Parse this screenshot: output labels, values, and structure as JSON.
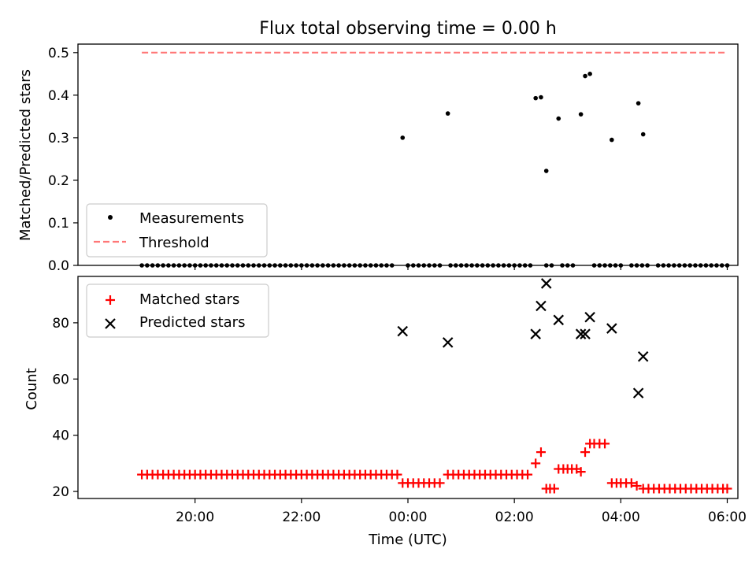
{
  "figure": {
    "title": "Flux total observing time = 0.00 h",
    "xlabel": "Time (UTC)",
    "xticks": [
      "20:00",
      "22:00",
      "00:00",
      "02:00",
      "04:00",
      "06:00"
    ]
  },
  "chart_data": [
    {
      "type": "scatter",
      "panel": "top",
      "xlabel": "",
      "ylabel": "Matched/Predicted stars",
      "x_unit": "hours since 19:00 UTC",
      "xlim": [
        -1.2,
        11.2
      ],
      "ylim": [
        0,
        0.52
      ],
      "yticks": [
        "0.0",
        "0.1",
        "0.2",
        "0.3",
        "0.4",
        "0.5"
      ],
      "ytick_values": [
        0,
        0.1,
        0.2,
        0.3,
        0.4,
        0.5
      ],
      "legend": {
        "placement": "lower-left",
        "entries": [
          "Measurements",
          "Threshold"
        ]
      },
      "threshold": {
        "name": "Threshold",
        "value": 0.5,
        "x_range": [
          0,
          11
        ],
        "color": "#ff7777"
      },
      "series": [
        {
          "name": "Measurements",
          "color": "#000000",
          "zero_points_x": [
            0.0,
            0.1,
            0.2,
            0.3,
            0.4,
            0.5,
            0.6,
            0.7,
            0.8,
            0.9,
            1.0,
            1.1,
            1.2,
            1.3,
            1.4,
            1.5,
            1.6,
            1.7,
            1.8,
            1.9,
            2.0,
            2.1,
            2.2,
            2.3,
            2.4,
            2.5,
            2.6,
            2.7,
            2.8,
            2.9,
            3.0,
            3.1,
            3.2,
            3.3,
            3.4,
            3.5,
            3.6,
            3.7,
            3.8,
            3.9,
            4.0,
            4.1,
            4.2,
            4.3,
            4.4,
            4.5,
            4.6,
            4.7,
            5.0,
            5.1,
            5.2,
            5.3,
            5.4,
            5.5,
            5.6,
            5.8,
            5.9,
            6.0,
            6.1,
            6.2,
            6.3,
            6.4,
            6.5,
            6.6,
            6.7,
            6.8,
            6.9,
            7.0,
            7.1,
            7.2,
            7.3,
            7.6,
            7.7,
            7.9,
            8.0,
            8.1,
            8.5,
            8.6,
            8.7,
            8.8,
            8.9,
            9.0,
            9.2,
            9.3,
            9.4,
            9.5,
            9.7,
            9.8,
            9.9,
            10.0,
            10.1,
            10.2,
            10.3,
            10.4,
            10.5,
            10.6,
            10.7,
            10.8,
            10.9,
            11.0
          ],
          "points": [
            [
              4.9,
              0.3
            ],
            [
              5.75,
              0.357
            ],
            [
              7.4,
              0.393
            ],
            [
              7.5,
              0.395
            ],
            [
              7.6,
              0.222
            ],
            [
              7.83,
              0.345
            ],
            [
              8.25,
              0.355
            ],
            [
              8.33,
              0.445
            ],
            [
              8.42,
              0.45
            ],
            [
              8.83,
              0.295
            ],
            [
              9.33,
              0.381
            ],
            [
              9.42,
              0.308
            ]
          ]
        }
      ]
    },
    {
      "type": "scatter",
      "panel": "bottom",
      "xlabel": "Time (UTC)",
      "ylabel": "Count",
      "x_unit": "hours since 19:00 UTC",
      "xlim": [
        -1.2,
        11.2
      ],
      "ylim": [
        17.5,
        96.5
      ],
      "yticks": [
        "20",
        "40",
        "60",
        "80"
      ],
      "ytick_values": [
        20,
        40,
        60,
        80
      ],
      "legend": {
        "placement": "upper-left",
        "entries": [
          "Matched stars",
          "Predicted stars"
        ]
      },
      "series": [
        {
          "name": "Matched stars",
          "marker": "plus",
          "color": "#ff0000",
          "points": [
            [
              0.0,
              26
            ],
            [
              0.1,
              26
            ],
            [
              0.2,
              26
            ],
            [
              0.3,
              26
            ],
            [
              0.4,
              26
            ],
            [
              0.5,
              26
            ],
            [
              0.6,
              26
            ],
            [
              0.7,
              26
            ],
            [
              0.8,
              26
            ],
            [
              0.9,
              26
            ],
            [
              1.0,
              26
            ],
            [
              1.1,
              26
            ],
            [
              1.2,
              26
            ],
            [
              1.3,
              26
            ],
            [
              1.4,
              26
            ],
            [
              1.5,
              26
            ],
            [
              1.6,
              26
            ],
            [
              1.7,
              26
            ],
            [
              1.8,
              26
            ],
            [
              1.9,
              26
            ],
            [
              2.0,
              26
            ],
            [
              2.1,
              26
            ],
            [
              2.2,
              26
            ],
            [
              2.3,
              26
            ],
            [
              2.4,
              26
            ],
            [
              2.5,
              26
            ],
            [
              2.6,
              26
            ],
            [
              2.7,
              26
            ],
            [
              2.8,
              26
            ],
            [
              2.9,
              26
            ],
            [
              3.0,
              26
            ],
            [
              3.1,
              26
            ],
            [
              3.2,
              26
            ],
            [
              3.3,
              26
            ],
            [
              3.4,
              26
            ],
            [
              3.5,
              26
            ],
            [
              3.6,
              26
            ],
            [
              3.7,
              26
            ],
            [
              3.8,
              26
            ],
            [
              3.9,
              26
            ],
            [
              4.0,
              26
            ],
            [
              4.1,
              26
            ],
            [
              4.2,
              26
            ],
            [
              4.3,
              26
            ],
            [
              4.4,
              26
            ],
            [
              4.5,
              26
            ],
            [
              4.6,
              26
            ],
            [
              4.7,
              26
            ],
            [
              4.8,
              26
            ],
            [
              4.9,
              23
            ],
            [
              5.0,
              23
            ],
            [
              5.1,
              23
            ],
            [
              5.2,
              23
            ],
            [
              5.3,
              23
            ],
            [
              5.4,
              23
            ],
            [
              5.5,
              23
            ],
            [
              5.6,
              23
            ],
            [
              5.75,
              26
            ],
            [
              5.85,
              26
            ],
            [
              5.95,
              26
            ],
            [
              6.05,
              26
            ],
            [
              6.15,
              26
            ],
            [
              6.25,
              26
            ],
            [
              6.35,
              26
            ],
            [
              6.45,
              26
            ],
            [
              6.55,
              26
            ],
            [
              6.65,
              26
            ],
            [
              6.75,
              26
            ],
            [
              6.85,
              26
            ],
            [
              6.95,
              26
            ],
            [
              7.05,
              26
            ],
            [
              7.15,
              26
            ],
            [
              7.25,
              26
            ],
            [
              7.4,
              30
            ],
            [
              7.5,
              34
            ],
            [
              7.6,
              21
            ],
            [
              7.67,
              21
            ],
            [
              7.75,
              21
            ],
            [
              7.83,
              28
            ],
            [
              7.92,
              28
            ],
            [
              8.0,
              28
            ],
            [
              8.08,
              28
            ],
            [
              8.17,
              28
            ],
            [
              8.25,
              27
            ],
            [
              8.33,
              34
            ],
            [
              8.42,
              37
            ],
            [
              8.5,
              37
            ],
            [
              8.6,
              37
            ],
            [
              8.7,
              37
            ],
            [
              8.83,
              23
            ],
            [
              8.92,
              23
            ],
            [
              9.0,
              23
            ],
            [
              9.1,
              23
            ],
            [
              9.2,
              23
            ],
            [
              9.3,
              22
            ],
            [
              9.42,
              21
            ],
            [
              9.52,
              21
            ],
            [
              9.62,
              21
            ],
            [
              9.72,
              21
            ],
            [
              9.82,
              21
            ],
            [
              9.92,
              21
            ],
            [
              10.02,
              21
            ],
            [
              10.12,
              21
            ],
            [
              10.22,
              21
            ],
            [
              10.32,
              21
            ],
            [
              10.42,
              21
            ],
            [
              10.52,
              21
            ],
            [
              10.62,
              21
            ],
            [
              10.72,
              21
            ],
            [
              10.82,
              21
            ],
            [
              10.92,
              21
            ],
            [
              11.0,
              21
            ]
          ]
        },
        {
          "name": "Predicted stars",
          "marker": "x",
          "color": "#000000",
          "points": [
            [
              4.9,
              77
            ],
            [
              5.75,
              73
            ],
            [
              7.4,
              76
            ],
            [
              7.5,
              86
            ],
            [
              7.6,
              94
            ],
            [
              7.83,
              81
            ],
            [
              8.25,
              76
            ],
            [
              8.33,
              76
            ],
            [
              8.42,
              82
            ],
            [
              8.83,
              78
            ],
            [
              9.33,
              55
            ],
            [
              9.42,
              68
            ]
          ]
        }
      ]
    }
  ]
}
